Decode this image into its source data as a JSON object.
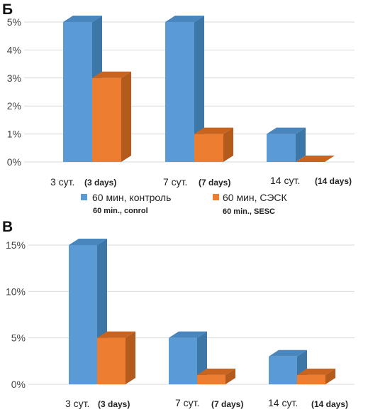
{
  "colors": {
    "series1": "#5B9BD5",
    "series1_side": "#3D77A8",
    "series1_top": "#4A86BE",
    "series2": "#ED7D31",
    "series2_side": "#B35A1C",
    "series2_top": "#C8641F",
    "grid": "#D9D9D9"
  },
  "legend": {
    "series1": {
      "label": "60 мин, контроль",
      "sublabel": "60 min., conrol"
    },
    "series2": {
      "label": "60 мин, СЭСК",
      "sublabel": "60 min., SESC"
    }
  },
  "chart_data": [
    {
      "type": "bar",
      "panel_label": "Б",
      "categories": [
        "3 сут.",
        "7 сут.",
        "14 сут."
      ],
      "category_sublabels": [
        "(3 days)",
        "(7 days)",
        "(14 days)"
      ],
      "yticks": [
        "0%",
        "1%",
        "2%",
        "3%",
        "4%",
        "5%"
      ],
      "ylim": [
        0,
        5
      ],
      "grid": true,
      "legend_position": "bottom",
      "series": [
        {
          "name": "60 мин, контроль",
          "values": [
            5,
            5,
            1
          ]
        },
        {
          "name": "60 мин, СЭСК",
          "values": [
            3,
            1,
            0
          ]
        }
      ]
    },
    {
      "type": "bar",
      "panel_label": "В",
      "categories": [
        "3 сут.",
        "7 сут.",
        "14 сут."
      ],
      "category_sublabels": [
        "(3 days)",
        "(7 days)",
        "(14 days)"
      ],
      "yticks": [
        "0%",
        "5%",
        "10%",
        "15%"
      ],
      "ylim": [
        0,
        15
      ],
      "grid": true,
      "legend_position": "none",
      "series": [
        {
          "name": "60 мин, контроль",
          "values": [
            15,
            5,
            3
          ]
        },
        {
          "name": "60 мин, СЭСК",
          "values": [
            5,
            1,
            1
          ]
        }
      ]
    }
  ]
}
